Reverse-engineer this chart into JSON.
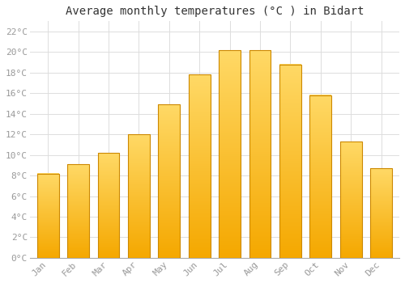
{
  "title": "Average monthly temperatures (°C ) in Bidart",
  "months": [
    "Jan",
    "Feb",
    "Mar",
    "Apr",
    "May",
    "Jun",
    "Jul",
    "Aug",
    "Sep",
    "Oct",
    "Nov",
    "Dec"
  ],
  "values": [
    8.2,
    9.1,
    10.2,
    12.0,
    14.9,
    17.8,
    20.2,
    20.2,
    18.8,
    15.8,
    11.3,
    8.7
  ],
  "bar_color_bottom": "#F5A800",
  "bar_color_top": "#FFD966",
  "bar_edge_color": "#CC8800",
  "background_color": "#FFFFFF",
  "plot_bg_color": "#FFFFFF",
  "grid_color": "#DDDDDD",
  "ytick_labels": [
    "0°C",
    "2°C",
    "4°C",
    "6°C",
    "8°C",
    "10°C",
    "12°C",
    "14°C",
    "16°C",
    "18°C",
    "20°C",
    "22°C"
  ],
  "ytick_values": [
    0,
    2,
    4,
    6,
    8,
    10,
    12,
    14,
    16,
    18,
    20,
    22
  ],
  "ylim": [
    0,
    23
  ],
  "title_fontsize": 10,
  "tick_fontsize": 8,
  "tick_color": "#999999",
  "font_family": "monospace"
}
